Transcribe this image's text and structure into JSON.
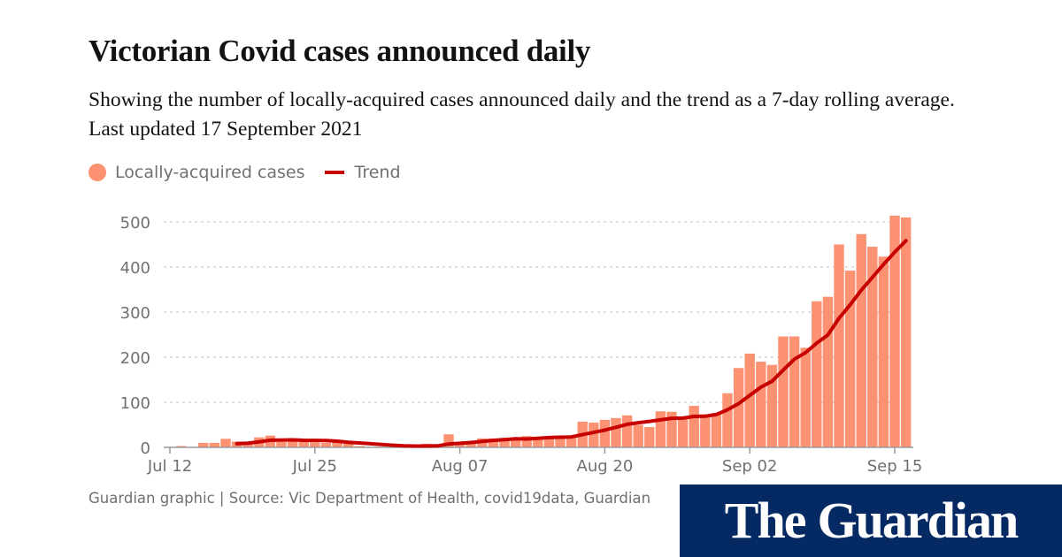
{
  "header": {
    "title": "Victorian Covid cases announced daily",
    "subtitle": "Showing the number of locally-acquired cases announced daily and the trend as a 7-day rolling average. Last updated 17 September 2021"
  },
  "legend": {
    "bars_label": "Locally-acquired cases",
    "line_label": "Trend"
  },
  "footer": {
    "source": "Guardian graphic | Source: Vic Department of Health, covid19data, Guardian"
  },
  "logo": {
    "line1": "The",
    "line2": "Guardian",
    "background": "#052962"
  },
  "colors": {
    "bars": "#fc9272",
    "trend": "#c70000",
    "axis_text": "#707070",
    "grid": "#cccccc"
  },
  "chart_data": {
    "type": "bar",
    "title": "Victorian Covid cases announced daily",
    "start_date": "2021-07-12",
    "end_date": "2021-09-16",
    "x_ticks": [
      "Jul 12",
      "Jul 25",
      "Aug 07",
      "Aug 20",
      "Sep 02",
      "Sep 15"
    ],
    "y_ticks": [
      0,
      100,
      200,
      300,
      400,
      500
    ],
    "ylim": [
      0,
      500
    ],
    "grid": true,
    "legend_position": "top-left",
    "series": [
      {
        "name": "Locally-acquired cases",
        "type": "bar",
        "values": [
          1,
          3,
          0,
          10,
          10,
          19,
          13,
          11,
          22,
          26,
          12,
          14,
          12,
          11,
          10,
          11,
          8,
          3,
          1,
          0,
          0,
          2,
          6,
          8,
          7,
          29,
          11,
          13,
          20,
          20,
          21,
          21,
          25,
          22,
          24,
          25,
          24,
          57,
          55,
          61,
          65,
          71,
          50,
          45,
          80,
          79,
          64,
          92,
          73,
          76,
          120,
          176,
          208,
          190,
          183,
          246,
          246,
          221,
          324,
          334,
          450,
          392,
          473,
          445,
          423,
          514,
          510
        ]
      },
      {
        "name": "Trend",
        "type": "line",
        "rolling_window_days": 7
      }
    ]
  }
}
